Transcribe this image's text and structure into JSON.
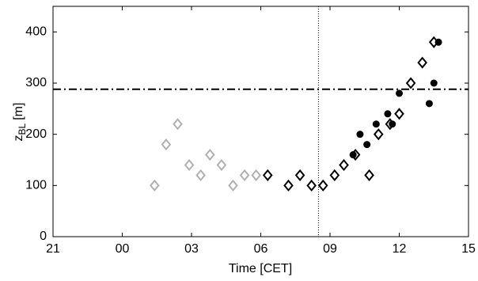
{
  "chart_data": {
    "type": "scatter",
    "xlabel": "Time [CET]",
    "ylabel": "z",
    "ylabel_sub": "BL",
    "ylabel_unit": "[m]",
    "xlim": [
      -3,
      15
    ],
    "xticks": [
      {
        "value": -3,
        "label": "21"
      },
      {
        "value": 0,
        "label": "00"
      },
      {
        "value": 3,
        "label": "03"
      },
      {
        "value": 6,
        "label": "06"
      },
      {
        "value": 9,
        "label": "09"
      },
      12,
      15
    ],
    "ylim": [
      0,
      450
    ],
    "yticks": [
      0,
      100,
      200,
      300,
      400
    ],
    "grid": false,
    "series": [
      {
        "color": "#b0b0b0",
        "marker": "diamond",
        "x": [
          1.4,
          1.9,
          2.4,
          2.9,
          3.4,
          3.8,
          4.3,
          4.8,
          5.3,
          5.8
        ],
        "values": [
          100,
          180,
          220,
          140,
          120,
          160,
          140,
          100,
          120,
          120
        ]
      },
      {
        "color": "#000000",
        "marker": "diamond",
        "x": [
          6.3,
          7.2,
          7.7,
          8.2,
          8.7,
          9.2,
          9.6,
          10.1,
          10.7,
          11.1,
          11.6,
          12.0,
          12.5,
          13.0,
          13.5
        ],
        "values": [
          120,
          100,
          120,
          100,
          100,
          120,
          140,
          160,
          120,
          200,
          220,
          240,
          300,
          340,
          380
        ]
      },
      {
        "color": "#000000",
        "marker": "circle",
        "x": [
          10.0,
          10.3,
          10.6,
          11.0,
          11.5,
          11.7,
          12.0,
          13.3,
          13.5,
          13.7
        ],
        "values": [
          160,
          200,
          180,
          220,
          240,
          220,
          280,
          260,
          300,
          380
        ]
      }
    ],
    "hline": 288,
    "vline": 8.5
  }
}
